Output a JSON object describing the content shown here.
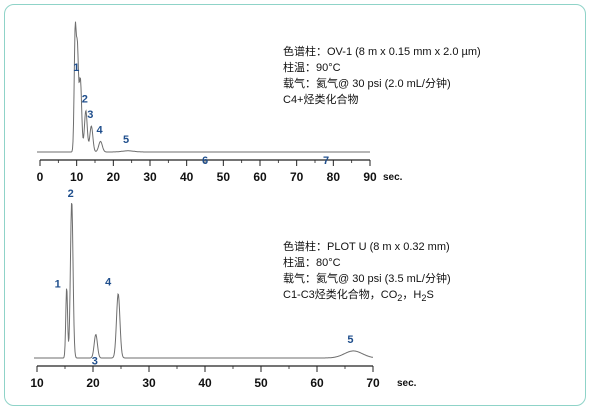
{
  "chart_data": [
    {
      "type": "line",
      "x_unit": "sec.",
      "xlim": [
        0,
        90
      ],
      "x_ticks": [
        "0",
        "10",
        "20",
        "30",
        "40",
        "50",
        "60",
        "70",
        "80",
        "90"
      ],
      "peaks": [
        {
          "label": "1",
          "x": 11.0,
          "height": 0.62
        },
        {
          "label": "2",
          "x": 12.5,
          "height": 0.35
        },
        {
          "label": "3",
          "x": 14.0,
          "height": 0.22
        },
        {
          "label": "4",
          "x": 16.5,
          "height": 0.09
        },
        {
          "label": "5",
          "x": 24.0,
          "height": 0.01
        },
        {
          "label": "6",
          "x": 45.0,
          "height": 0.0
        },
        {
          "label": "7",
          "x": 78.0,
          "height": 0.0
        }
      ],
      "info": [
        "色谱柱：OV-1 (8 m x 0.15 mm x 2.0 µm)",
        "柱温：90°C",
        "载气：氦气@ 30 psi (2.0 mL/分钟)",
        "C4+烃类化合物"
      ]
    },
    {
      "type": "line",
      "x_unit": "sec.",
      "xlim": [
        10,
        70
      ],
      "x_ticks": [
        "10",
        "20",
        "30",
        "40",
        "50",
        "60",
        "70"
      ],
      "peaks": [
        {
          "label": "1",
          "x": 15.3,
          "height": 0.45
        },
        {
          "label": "2",
          "x": 16.2,
          "height": 1.0
        },
        {
          "label": "3",
          "x": 20.5,
          "height": 0.15
        },
        {
          "label": "4",
          "x": 24.5,
          "height": 0.41
        },
        {
          "label": "5",
          "x": 66.5,
          "height": 0.045
        }
      ],
      "info": [
        "色谱柱：PLOT U (8 m x 0.32 mm)",
        "柱温：80°C",
        "载气：氦气@ 30 psi (3.5 mL/分钟)"
      ],
      "info_last": {
        "prefix": "C1-C3烃类化合物，CO",
        "sub1": "2",
        "mid": "，H",
        "sub2": "2",
        "suffix": "S"
      }
    }
  ]
}
